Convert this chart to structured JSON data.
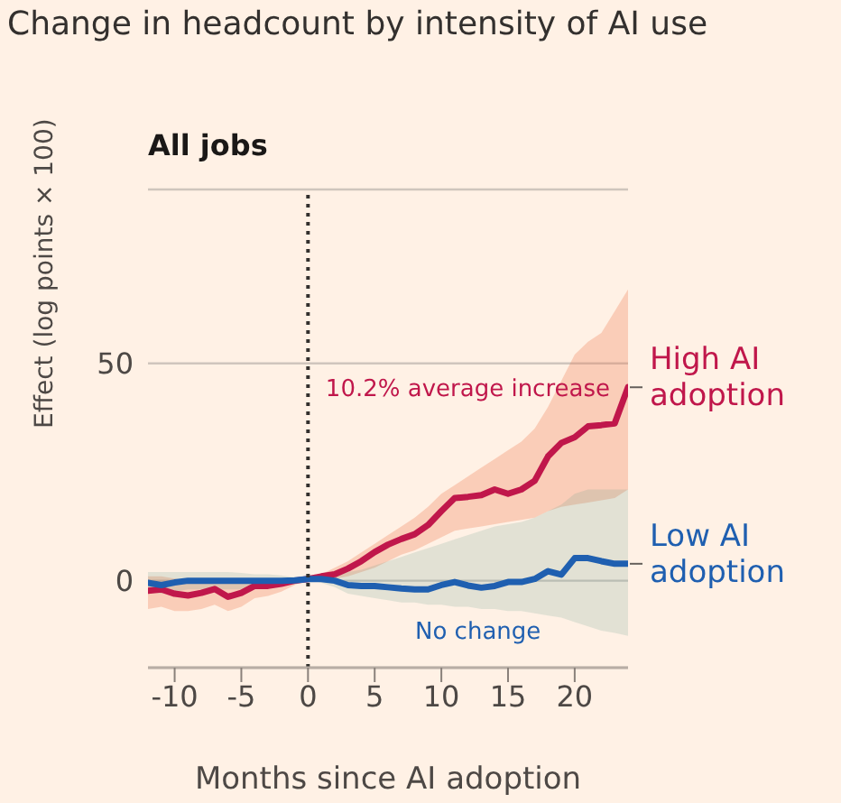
{
  "chart_data": {
    "type": "line",
    "title": "Change in headcount by intensity of AI use",
    "subtitle": "All jobs",
    "xlabel": "Months since AI adoption",
    "ylabel": "Effect (log points × 100)",
    "x": [
      -12,
      -11,
      -10,
      -9,
      -8,
      -7,
      -6,
      -5,
      -4,
      -3,
      -2,
      -1,
      0,
      1,
      2,
      3,
      4,
      5,
      6,
      7,
      8,
      9,
      10,
      11,
      12,
      13,
      14,
      15,
      16,
      17,
      18,
      19,
      20,
      21,
      22,
      23,
      24
    ],
    "series": [
      {
        "name": "High AI adoption",
        "color": "#c0174b",
        "values": [
          -2.3,
          -2,
          -3,
          -3.4,
          -2.8,
          -1.9,
          -3.7,
          -2.8,
          -1.2,
          -1.2,
          -0.7,
          0,
          0.4,
          1,
          1.5,
          2.8,
          4.5,
          6.6,
          8.3,
          9.6,
          10.7,
          12.8,
          16,
          19,
          19.3,
          19.7,
          21,
          20,
          21,
          23,
          28.6,
          31.7,
          33,
          35.5,
          35.8,
          36.2,
          44.5
        ],
        "lower": [
          -6.5,
          -6,
          -7,
          -7,
          -6.5,
          -5.5,
          -7,
          -6,
          -4,
          -3.5,
          -2.5,
          -1,
          0.4,
          0.5,
          0.5,
          1,
          2,
          3,
          4.5,
          6,
          7,
          8.5,
          10,
          11.5,
          12,
          12.5,
          13,
          13.5,
          14,
          14.5,
          16,
          17,
          17.5,
          18,
          18.5,
          19,
          21
        ],
        "upper": [
          1,
          1,
          0.5,
          0,
          0,
          0.5,
          0,
          0,
          0.5,
          0.5,
          0.5,
          0.5,
          0.4,
          1.5,
          3,
          4.5,
          6.5,
          8.5,
          10.5,
          12.5,
          14.5,
          17,
          20,
          22,
          24,
          26,
          28,
          30,
          32,
          35,
          40,
          46,
          52,
          55,
          57,
          62,
          67
        ]
      },
      {
        "name": "Low AI adoption",
        "color": "#1f5fb0",
        "values": [
          -0.5,
          -1,
          -0.4,
          0,
          0,
          0,
          0,
          0,
          0,
          0,
          0,
          0.1,
          0.4,
          0.4,
          0,
          -1,
          -1.2,
          -1.2,
          -1.5,
          -1.8,
          -2,
          -2,
          -1,
          -0.3,
          -1.1,
          -1.6,
          -1.2,
          -0.3,
          -0.3,
          0.4,
          2.2,
          1.4,
          5.2,
          5.2,
          4.5,
          3.9,
          3.9
        ],
        "lower": [
          -2.5,
          -3,
          -2.5,
          -2,
          -2,
          -2,
          -2,
          -2,
          -1.8,
          -1.5,
          -1,
          -0.5,
          0.4,
          -0.5,
          -1.5,
          -3,
          -3.5,
          -4,
          -4.5,
          -5,
          -5,
          -5.5,
          -5.5,
          -6,
          -6,
          -6.5,
          -6.5,
          -7,
          -7,
          -7.5,
          -8,
          -8.5,
          -9.5,
          -10.5,
          -11.5,
          -12,
          -12.7
        ],
        "upper": [
          2,
          2,
          2,
          2,
          2,
          2,
          2,
          1.8,
          1.5,
          1.5,
          1.2,
          0.8,
          0.4,
          1,
          1.5,
          2,
          2.5,
          3.5,
          4.5,
          5.5,
          6.5,
          7.5,
          8.5,
          9.5,
          10.5,
          11.5,
          12.5,
          13,
          13.5,
          14.5,
          16,
          17.5,
          20,
          21,
          21,
          21,
          21
        ]
      }
    ],
    "xlim": [
      -12,
      24
    ],
    "xticks": [
      -10,
      -5,
      0,
      5,
      10,
      15,
      20
    ],
    "ylim": [
      -20,
      90
    ],
    "yticks": [
      0,
      50
    ],
    "grid": "y",
    "line_style": "solid",
    "marker": "none",
    "ref_lines": [
      {
        "axis": "x",
        "value": 0,
        "line_style": "dotted",
        "color": "#33302e"
      }
    ],
    "annotations": [
      {
        "text": "10.2% average increase",
        "x": 24,
        "y": 44.5
      },
      "No change"
    ]
  }
}
